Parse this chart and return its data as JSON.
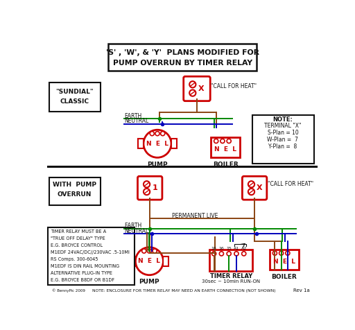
{
  "title_line1": "'S' , 'W', & 'Y'  PLANS MODIFIED FOR",
  "title_line2": "PUMP OVERRUN BY TIMER RELAY",
  "bg_color": "#ffffff",
  "red": "#cc0000",
  "green": "#008800",
  "blue": "#0000bb",
  "brown": "#8B4513",
  "black": "#111111",
  "section1_label1": "\"SUNDIAL\"",
  "section1_label2": "CLASSIC",
  "section2_label1": "WITH  PUMP",
  "section2_label2": "OVERRUN",
  "note_title": "NOTE:",
  "note_lines": [
    "TERMINAL \"X\"",
    "S-Plan = 10",
    "W-Plan =  7",
    "Y-Plan =  8"
  ],
  "timer_note_lines": [
    "TIMER RELAY MUST BE A",
    "\"TRUE OFF DELAY\" TYPE",
    "E.G. BROYCE CONTROL",
    "M1EDF 24VAC/DC//230VAC .5-10MI",
    "RS Comps. 300-6045",
    "M1EDF IS DIN RAIL MOUNTING",
    "ALTERNATIVE PLUG-IN TYPE",
    "E.G. BROYCE B8DF OR B1DF"
  ],
  "bottom_note": "NOTE: ENCLOSURE FOR TIMER RELAY MAY NEED AN EARTH CONNECTION (NOT SHOWN)",
  "footer_left": "Rev 1a",
  "call_for_heat": "\"CALL FOR HEAT\"",
  "permanent_live": "PERMANENT LIVE",
  "earth_label": "EARTH",
  "neutral_label": "NEUTRAL",
  "pump_label": "PUMP",
  "boiler_label": "BOILER",
  "timer_relay_label": "TIMER RELAY",
  "timer_relay_sub": "30sec ~ 10min RUN-ON",
  "nel_label": "N  E  L"
}
